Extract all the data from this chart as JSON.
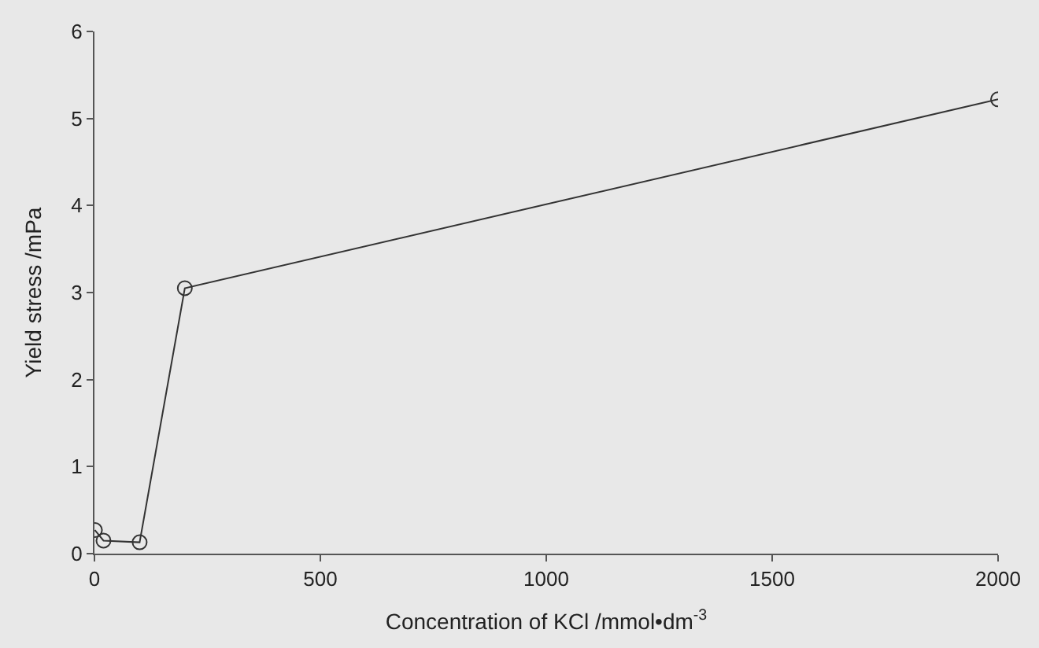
{
  "chart_data": {
    "type": "line",
    "xlabel": "Concentration of KCl /mmol•dm$^{-3}$",
    "ylabel": "Yield stress /mPa",
    "x": [
      1,
      20,
      100,
      200,
      2000
    ],
    "series": [
      {
        "color": "#333333",
        "values": [
          0.27,
          0.15,
          0.13,
          3.05,
          5.22
        ]
      }
    ],
    "xlim": [
      0,
      2000
    ],
    "xticks": [
      0,
      500,
      1000,
      1500,
      2000
    ],
    "ylim": [
      0,
      6
    ],
    "yticks": [
      0,
      1,
      2,
      3,
      4,
      5,
      6
    ],
    "marker": "circle",
    "line_style": "solid",
    "grid": false,
    "legend": false
  }
}
